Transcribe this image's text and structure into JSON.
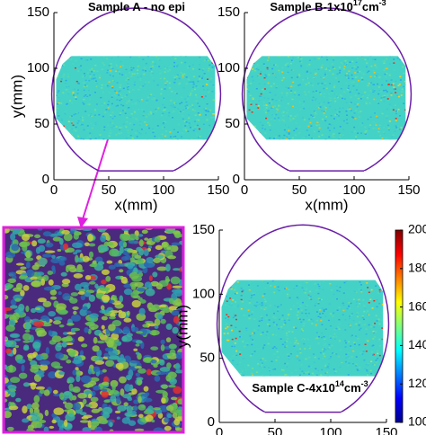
{
  "chart_data": [
    {
      "type": "heatmap",
      "title": [
        "Sample A - no epi"
      ],
      "xlabel": "x(mm)",
      "ylabel": "y(mm)",
      "xlim": [
        0,
        150
      ],
      "ylim": [
        0,
        150
      ],
      "xticks": [
        0,
        50,
        100,
        150
      ],
      "yticks": [
        0,
        50,
        100,
        150
      ]
    },
    {
      "type": "heatmap",
      "title": [
        "Sample B-1x10",
        "17",
        "cm",
        "-3"
      ],
      "xlabel": "x(mm)",
      "xlim": [
        0,
        150
      ],
      "ylim": [
        0,
        150
      ],
      "xticks": [
        0,
        50,
        100,
        150
      ],
      "yticks": [
        0,
        50,
        100,
        150
      ]
    },
    {
      "type": "heatmap",
      "title": [
        "Sample C-4x10",
        "14",
        "cm",
        "-3"
      ],
      "ylabel": "y(mm)",
      "xlim": [
        0,
        150
      ],
      "ylim": [
        0,
        150
      ],
      "xticks": [
        0,
        50,
        100,
        150
      ],
      "yticks": [
        0,
        50,
        100,
        150
      ],
      "colorbar": {
        "clim": [
          100,
          200
        ],
        "ticks": [
          100,
          120,
          140,
          160,
          180,
          200
        ]
      }
    }
  ]
}
